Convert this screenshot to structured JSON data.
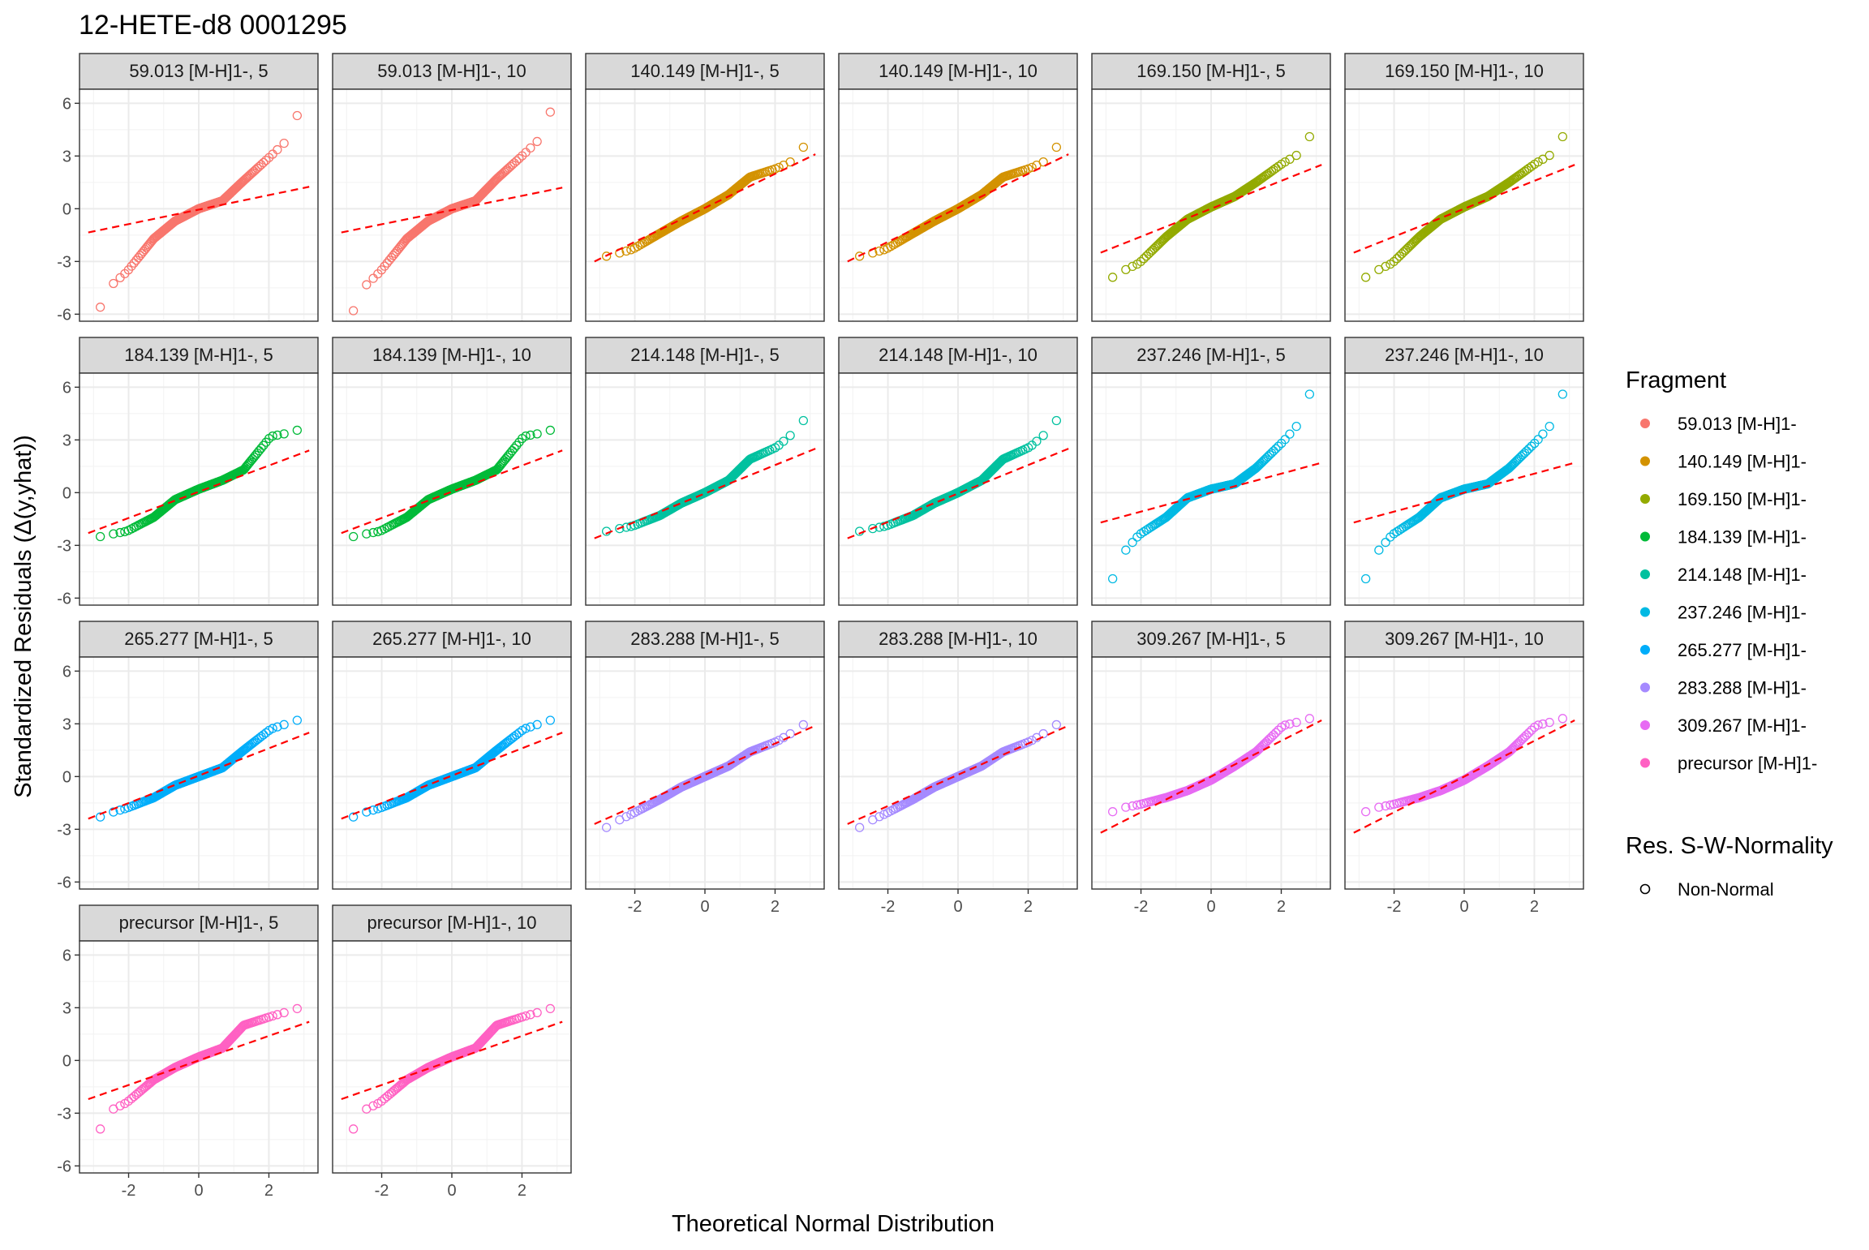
{
  "title": "12-HETE-d8 0001295",
  "xlabel": "Theoretical Normal Distribution",
  "ylabel": "Standardized Residuals (Δ(y,yhat))",
  "legend": {
    "fragment_title": "Fragment",
    "fragments": [
      {
        "label": "59.013 [M-H]1-",
        "color": "#F8766D"
      },
      {
        "label": "140.149 [M-H]1-",
        "color": "#D39200"
      },
      {
        "label": "169.150 [M-H]1-",
        "color": "#93AA00"
      },
      {
        "label": "184.139 [M-H]1-",
        "color": "#00BA38"
      },
      {
        "label": "214.148 [M-H]1-",
        "color": "#00C19F"
      },
      {
        "label": "237.246 [M-H]1-",
        "color": "#00B9E3"
      },
      {
        "label": "265.277 [M-H]1-",
        "color": "#00ADFA"
      },
      {
        "label": "283.288 [M-H]1-",
        "color": "#A58AFF"
      },
      {
        "label": "309.267 [M-H]1-",
        "color": "#E76BF3"
      },
      {
        "label": "precursor [M-H]1-",
        "color": "#FF61C3"
      }
    ],
    "normality_title": "Res. S-W-Normality",
    "normality_entries": [
      "Non-Normal"
    ]
  },
  "chart_data": {
    "type": "scatter",
    "subtype": "qq-plot-facets",
    "xlim": [
      -3.4,
      3.4
    ],
    "ylim": [
      -6.4,
      6.8
    ],
    "x_ticks": [
      -2,
      0,
      2
    ],
    "y_ticks": [
      -6,
      -3,
      0,
      3,
      6
    ],
    "grid": true,
    "reference_line": {
      "style": "dashed",
      "color": "#FF0000"
    },
    "facets": [
      {
        "label": "59.013 [M-H]1-, 5",
        "fragment": 0,
        "line": [
          -1.35,
          1.25
        ],
        "q": [
          -5.6,
          -4.5,
          -3.6,
          -1.7,
          -0.7,
          0.0,
          0.45,
          1.6,
          3.0,
          4.0,
          5.3
        ]
      },
      {
        "label": "59.013 [M-H]1-, 10",
        "fragment": 0,
        "line": [
          -1.35,
          1.2
        ],
        "q": [
          -5.8,
          -4.6,
          -3.6,
          -1.7,
          -0.7,
          0.0,
          0.45,
          1.7,
          3.1,
          4.1,
          5.5
        ]
      },
      {
        "label": "140.149 [M-H]1-, 5",
        "fragment": 1,
        "line": [
          -3.0,
          3.1
        ],
        "q": [
          -2.7,
          -2.6,
          -2.3,
          -1.4,
          -0.7,
          0.0,
          0.8,
          1.8,
          2.3,
          2.8,
          3.5
        ]
      },
      {
        "label": "140.149 [M-H]1-, 10",
        "fragment": 1,
        "line": [
          -3.0,
          3.1
        ],
        "q": [
          -2.7,
          -2.6,
          -2.3,
          -1.4,
          -0.7,
          0.0,
          0.8,
          1.8,
          2.3,
          2.8,
          3.5
        ]
      },
      {
        "label": "169.150 [M-H]1-, 5",
        "fragment": 2,
        "line": [
          -2.5,
          2.5
        ],
        "q": [
          -3.9,
          -3.6,
          -3.1,
          -1.6,
          -0.6,
          0.1,
          0.7,
          1.5,
          2.6,
          3.2,
          4.1
        ]
      },
      {
        "label": "169.150 [M-H]1-, 10",
        "fragment": 2,
        "line": [
          -2.5,
          2.5
        ],
        "q": [
          -3.9,
          -3.6,
          -3.1,
          -1.6,
          -0.6,
          0.1,
          0.7,
          1.5,
          2.6,
          3.2,
          4.1
        ]
      },
      {
        "label": "184.139 [M-H]1-, 5",
        "fragment": 3,
        "line": [
          -2.3,
          2.4
        ],
        "q": [
          -2.5,
          -2.4,
          -2.2,
          -1.4,
          -0.4,
          0.2,
          0.7,
          1.3,
          3.2,
          3.4,
          3.55
        ]
      },
      {
        "label": "184.139 [M-H]1-, 10",
        "fragment": 3,
        "line": [
          -2.3,
          2.4
        ],
        "q": [
          -2.5,
          -2.4,
          -2.2,
          -1.4,
          -0.4,
          0.2,
          0.7,
          1.3,
          3.2,
          3.4,
          3.55
        ]
      },
      {
        "label": "214.148 [M-H]1-, 5",
        "fragment": 4,
        "line": [
          -2.6,
          2.5
        ],
        "q": [
          -2.2,
          -2.1,
          -1.9,
          -1.3,
          -0.6,
          0.0,
          0.7,
          1.9,
          2.6,
          3.5,
          4.1
        ]
      },
      {
        "label": "214.148 [M-H]1-, 10",
        "fragment": 4,
        "line": [
          -2.6,
          2.5
        ],
        "q": [
          -2.2,
          -2.1,
          -1.9,
          -1.3,
          -0.6,
          0.0,
          0.7,
          1.9,
          2.6,
          3.5,
          4.1
        ]
      },
      {
        "label": "237.246 [M-H]1-, 5",
        "fragment": 5,
        "line": [
          -1.7,
          1.7
        ],
        "q": [
          -4.9,
          -3.6,
          -2.4,
          -1.4,
          -0.3,
          0.2,
          0.5,
          1.4,
          2.9,
          4.1,
          5.6
        ]
      },
      {
        "label": "237.246 [M-H]1-, 10",
        "fragment": 5,
        "line": [
          -1.7,
          1.7
        ],
        "q": [
          -4.9,
          -3.6,
          -2.4,
          -1.4,
          -0.3,
          0.2,
          0.5,
          1.4,
          2.9,
          4.1,
          5.6
        ]
      },
      {
        "label": "265.277 [M-H]1-, 5",
        "fragment": 6,
        "line": [
          -2.4,
          2.5
        ],
        "q": [
          -2.3,
          -2.1,
          -1.8,
          -1.2,
          -0.5,
          0.0,
          0.5,
          1.5,
          2.7,
          3.05,
          3.2
        ]
      },
      {
        "label": "265.277 [M-H]1-, 10",
        "fragment": 6,
        "line": [
          -2.4,
          2.5
        ],
        "q": [
          -2.3,
          -2.1,
          -1.8,
          -1.2,
          -0.5,
          0.0,
          0.5,
          1.5,
          2.7,
          3.05,
          3.2
        ]
      },
      {
        "label": "283.288 [M-H]1-, 5",
        "fragment": 7,
        "line": [
          -2.7,
          2.9
        ],
        "q": [
          -2.9,
          -2.6,
          -2.1,
          -1.3,
          -0.6,
          0.0,
          0.6,
          1.4,
          2.0,
          2.6,
          2.95
        ]
      },
      {
        "label": "283.288 [M-H]1-, 10",
        "fragment": 7,
        "line": [
          -2.7,
          2.9
        ],
        "q": [
          -2.9,
          -2.6,
          -2.1,
          -1.3,
          -0.6,
          0.0,
          0.6,
          1.4,
          2.0,
          2.6,
          2.95
        ]
      },
      {
        "label": "309.267 [M-H]1-, 5",
        "fragment": 8,
        "line": [
          -3.2,
          3.2
        ],
        "q": [
          -2.0,
          -1.8,
          -1.6,
          -1.2,
          -0.8,
          -0.2,
          0.6,
          1.4,
          2.9,
          3.15,
          3.3
        ]
      },
      {
        "label": "309.267 [M-H]1-, 10",
        "fragment": 8,
        "line": [
          -3.2,
          3.2
        ],
        "q": [
          -2.0,
          -1.8,
          -1.6,
          -1.2,
          -0.8,
          -0.2,
          0.6,
          1.4,
          2.9,
          3.15,
          3.3
        ]
      },
      {
        "label": "precursor [M-H]1-, 5",
        "fragment": 9,
        "line": [
          -2.2,
          2.2
        ],
        "q": [
          -3.9,
          -2.9,
          -2.4,
          -1.1,
          -0.4,
          0.2,
          0.7,
          2.0,
          2.5,
          2.8,
          2.95
        ]
      },
      {
        "label": "precursor [M-H]1-, 10",
        "fragment": 9,
        "line": [
          -2.2,
          2.2
        ],
        "q": [
          -3.9,
          -2.9,
          -2.4,
          -1.1,
          -0.4,
          0.2,
          0.7,
          2.0,
          2.5,
          2.8,
          2.95
        ]
      }
    ]
  }
}
